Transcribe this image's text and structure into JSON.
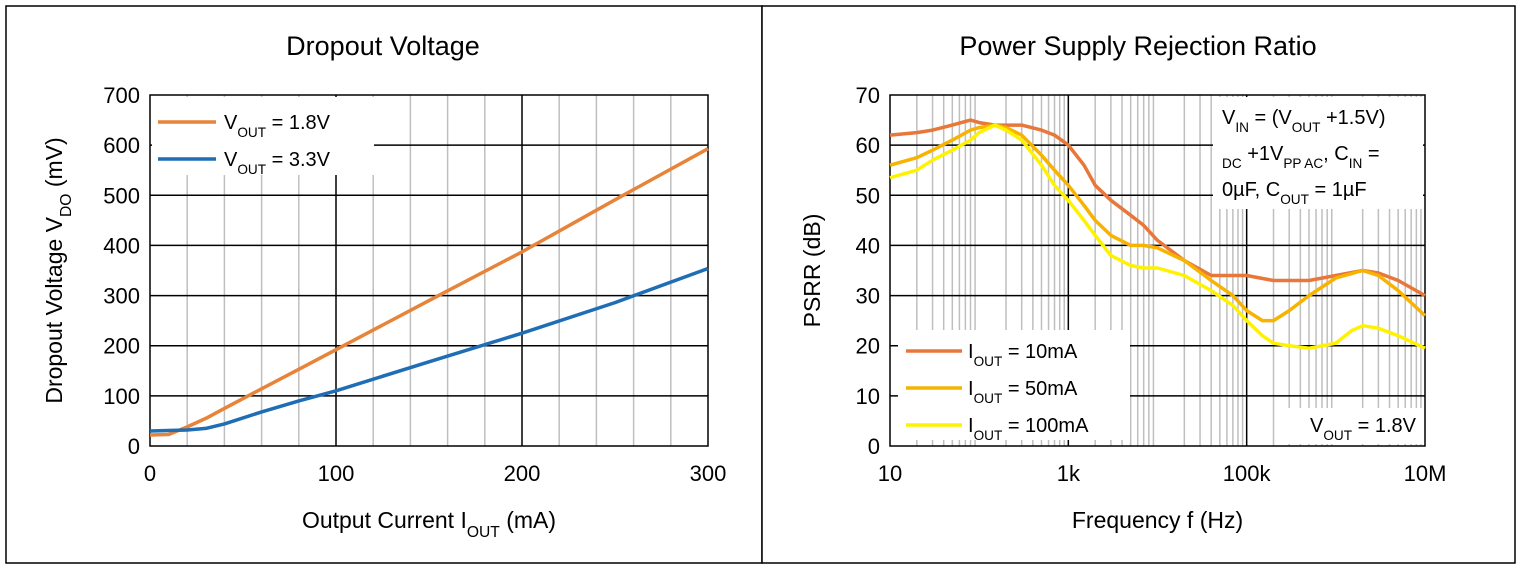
{
  "chart_data": [
    {
      "type": "line",
      "title": "Dropout Voltage",
      "xlabel": {
        "main": "Output Current I",
        "sub": "OUT",
        "tail": " (mA)"
      },
      "ylabel": {
        "main": "Dropout Voltage V",
        "sub": "DO",
        "tail": " (mV)"
      },
      "xlim": [
        0,
        300
      ],
      "ylim": [
        0,
        700
      ],
      "x_ticks": [
        "0",
        "100",
        "200",
        "300"
      ],
      "y_ticks": [
        "0",
        "100",
        "200",
        "300",
        "400",
        "500",
        "600",
        "700"
      ],
      "grid": true,
      "legend_position": "top-left",
      "series": [
        {
          "name": "V_OUT = 1.8V",
          "legend": {
            "main": "V",
            "sub": "OUT",
            "tail": " = 1.8V"
          },
          "color": "#E8833A",
          "x": [
            0,
            10,
            20,
            30,
            40,
            60,
            80,
            100,
            150,
            200,
            250,
            300
          ],
          "y": [
            22,
            23,
            38,
            55,
            75,
            114,
            153,
            192,
            290,
            387,
            491,
            593
          ]
        },
        {
          "name": "V_OUT = 3.3V",
          "legend": {
            "main": "V",
            "sub": "OUT",
            "tail": " = 3.3V"
          },
          "color": "#1F6DB5",
          "x": [
            0,
            10,
            20,
            30,
            40,
            60,
            80,
            100,
            150,
            200,
            250,
            300
          ],
          "y": [
            30,
            31,
            32,
            35,
            44,
            68,
            90,
            110,
            168,
            225,
            286,
            354
          ]
        }
      ]
    },
    {
      "type": "line",
      "title": "Power Supply Rejection Ratio",
      "xlabel": "Frequency f (Hz)",
      "ylabel": "PSRR (dB)",
      "xscale": "log",
      "xlim": [
        10,
        10000000
      ],
      "ylim": [
        0,
        70
      ],
      "x_ticks": [
        "10",
        "1k",
        "100k",
        "10M"
      ],
      "y_ticks": [
        "0",
        "10",
        "20",
        "30",
        "40",
        "50",
        "60",
        "70"
      ],
      "grid": true,
      "legend_position": "bottom-left",
      "annotation_conditions": {
        "line1": {
          "a": "V",
          "a_sub": "IN",
          "b": " = (V",
          "b_sub": "OUT",
          "c": " +1.5V)"
        },
        "line2": {
          "a_sub": "DC",
          "b": " +1V",
          "b_sub": "PP AC",
          "c": ", C",
          "c_sub": "IN",
          "d": " ="
        },
        "line3": {
          "a": "0µF, C",
          "a_sub": "OUT",
          "b": " = 1µF"
        }
      },
      "annotation_vout": {
        "main": "V",
        "sub": "OUT",
        "tail": " = 1.8V"
      },
      "series": [
        {
          "name": "I_OUT = 10mA",
          "legend": {
            "main": "I",
            "sub": "OUT",
            "tail": " = 10mA"
          },
          "color": "#E8773A",
          "x": [
            10,
            20,
            30,
            50,
            80,
            100,
            150,
            200,
            300,
            500,
            700,
            1000,
            1500,
            2000,
            3000,
            5000,
            7000,
            10000,
            20000,
            40000,
            70000,
            100000,
            200000,
            500000,
            1000000,
            2000000,
            3000000,
            5000000,
            10000000
          ],
          "y": [
            62,
            62.5,
            63,
            64,
            65,
            64.5,
            64,
            64,
            64,
            63,
            62,
            60,
            56,
            52,
            49,
            46,
            44,
            41,
            37,
            34,
            34,
            34,
            33,
            33,
            34,
            35,
            34.5,
            33,
            30
          ]
        },
        {
          "name": "I_OUT = 50mA",
          "legend": {
            "main": "I",
            "sub": "OUT",
            "tail": " = 50mA"
          },
          "color": "#F7B300",
          "x": [
            10,
            20,
            30,
            50,
            80,
            100,
            150,
            200,
            300,
            500,
            700,
            1000,
            1500,
            2000,
            3000,
            5000,
            7000,
            10000,
            20000,
            40000,
            70000,
            100000,
            150000,
            200000,
            300000,
            500000,
            1000000,
            2000000,
            3000000,
            5000000,
            10000000
          ],
          "y": [
            56,
            57.5,
            59,
            61,
            63,
            63.5,
            64,
            63.5,
            62,
            58,
            55,
            52,
            48,
            45,
            42,
            40,
            40,
            39.5,
            37,
            33,
            30,
            27,
            25,
            25,
            27,
            30,
            33.5,
            35,
            34,
            31,
            26
          ]
        },
        {
          "name": "I_OUT = 100mA",
          "legend": {
            "main": "I",
            "sub": "OUT",
            "tail": " = 100mA"
          },
          "color": "#FFF200",
          "x": [
            10,
            20,
            30,
            50,
            80,
            100,
            150,
            200,
            300,
            500,
            700,
            1000,
            1500,
            2000,
            3000,
            5000,
            7000,
            10000,
            20000,
            40000,
            70000,
            100000,
            150000,
            200000,
            300000,
            500000,
            1000000,
            1500000,
            2000000,
            3000000,
            5000000,
            10000000
          ],
          "y": [
            53.5,
            55,
            57,
            59,
            61,
            62.5,
            64,
            63,
            61,
            56,
            52,
            49,
            45,
            42,
            38,
            36,
            35.5,
            35.5,
            34,
            31,
            28,
            25,
            22,
            20.5,
            20,
            19.5,
            20.5,
            23,
            24,
            23.5,
            22,
            19.5
          ]
        }
      ]
    }
  ]
}
